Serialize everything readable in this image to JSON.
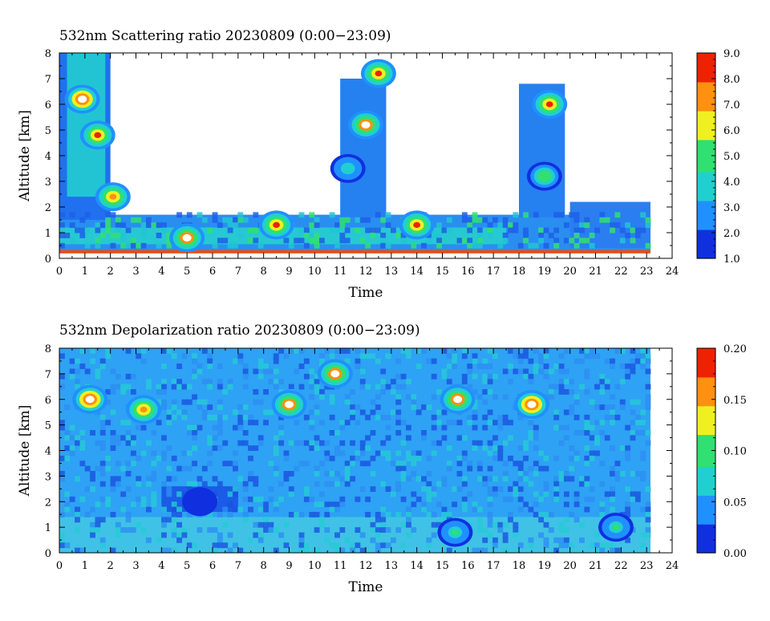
{
  "chart_data": [
    {
      "type": "heatmap",
      "title": "532nm Scattering ratio  20230809 (0:00−23:09)",
      "xlabel": "Time",
      "ylabel": "Altitude [km]",
      "xlim": [
        0,
        24
      ],
      "ylim": [
        0,
        8
      ],
      "x_ticks": [
        "0",
        "1",
        "2",
        "3",
        "4",
        "5",
        "6",
        "7",
        "8",
        "9",
        "10",
        "11",
        "12",
        "13",
        "14",
        "15",
        "16",
        "17",
        "18",
        "19",
        "20",
        "21",
        "22",
        "23",
        "24"
      ],
      "y_ticks": [
        "0",
        "1",
        "2",
        "3",
        "4",
        "5",
        "6",
        "7",
        "8"
      ],
      "colorbar": {
        "min": 1.0,
        "max": 9.0,
        "ticks": [
          "1.0",
          "2.0",
          "3.0",
          "4.0",
          "5.0",
          "6.0",
          "7.0",
          "8.0",
          "9.0"
        ]
      },
      "colormap": [
        "#1030e0",
        "#2090ff",
        "#20d0d0",
        "#30e070",
        "#f0f020",
        "#ff9010",
        "#ee2200"
      ],
      "features": [
        {
          "x": 0.9,
          "y": 6.2,
          "value": 9.0
        },
        {
          "x": 1.5,
          "y": 4.8,
          "value": 8.0
        },
        {
          "x": 2.1,
          "y": 2.4,
          "value": 7.5
        },
        {
          "x": 11.3,
          "y": 3.5,
          "value": 4.0
        },
        {
          "x": 12.0,
          "y": 5.2,
          "value": 8.5
        },
        {
          "x": 12.5,
          "y": 7.2,
          "value": 8.0
        },
        {
          "x": 19.2,
          "y": 6.0,
          "value": 8.0
        },
        {
          "x": 19.0,
          "y": 3.2,
          "value": 5.5
        },
        {
          "x": 5.0,
          "y": 0.8,
          "value": 8.5
        },
        {
          "x": 8.5,
          "y": 1.3,
          "value": 8.0
        },
        {
          "x": 14.0,
          "y": 1.3,
          "value": 8.0
        }
      ]
    },
    {
      "type": "heatmap",
      "title": "532nm Depolarization ratio  20230809 (0:00−23:09)",
      "xlabel": "Time",
      "ylabel": "Altitude [km]",
      "xlim": [
        0,
        24
      ],
      "ylim": [
        0,
        8
      ],
      "x_ticks": [
        "0",
        "1",
        "2",
        "3",
        "4",
        "5",
        "6",
        "7",
        "8",
        "9",
        "10",
        "11",
        "12",
        "13",
        "14",
        "15",
        "16",
        "17",
        "18",
        "19",
        "20",
        "21",
        "22",
        "23",
        "24"
      ],
      "y_ticks": [
        "0",
        "1",
        "2",
        "3",
        "4",
        "5",
        "6",
        "7",
        "8"
      ],
      "colorbar": {
        "min": 0.0,
        "max": 0.2,
        "ticks": [
          "0.00",
          "0.05",
          "0.10",
          "0.15",
          "0.20"
        ]
      },
      "colormap": [
        "#1030e0",
        "#2090ff",
        "#20d0d0",
        "#30e070",
        "#f0f020",
        "#ff9010",
        "#ee2200"
      ],
      "features": [
        {
          "x": 1.2,
          "y": 6.0,
          "value": 0.2
        },
        {
          "x": 3.3,
          "y": 5.6,
          "value": 0.17
        },
        {
          "x": 9.0,
          "y": 5.8,
          "value": 0.19
        },
        {
          "x": 10.8,
          "y": 7.0,
          "value": 0.19
        },
        {
          "x": 15.6,
          "y": 6.0,
          "value": 0.19
        },
        {
          "x": 18.5,
          "y": 5.8,
          "value": 0.2
        },
        {
          "x": 5.5,
          "y": 2.0,
          "value": 0.01
        },
        {
          "x": 15.5,
          "y": 0.8,
          "value": 0.09
        },
        {
          "x": 21.8,
          "y": 1.0,
          "value": 0.09
        }
      ]
    }
  ]
}
